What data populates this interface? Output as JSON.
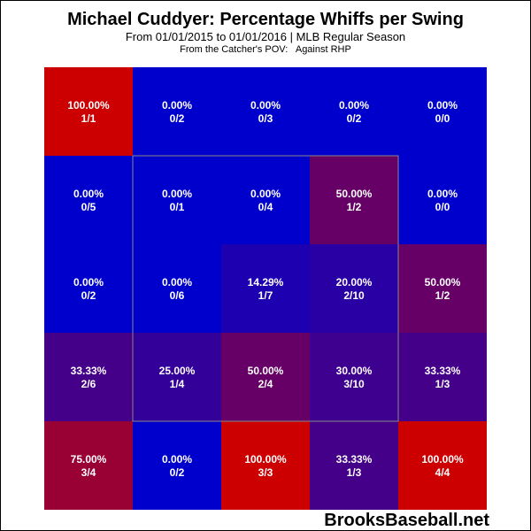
{
  "chart": {
    "title": "Michael Cuddyer: Percentage Whiffs per Swing",
    "subtitle": "From 01/01/2015 to 01/01/2016 | MLB Regular Season",
    "pov_text": "From the Catcher's POV:   Against RHP",
    "watermark": "BrooksBaseball.net"
  },
  "chart_data": {
    "type": "heatmap",
    "title": "Michael Cuddyer: Percentage Whiffs per Swing",
    "rows": 5,
    "cols": 5,
    "strike_zone": {
      "rows": [
        1,
        3
      ],
      "cols": [
        1,
        3
      ]
    },
    "colors": {
      "low": "#0000cc",
      "high": "#cc0000",
      "zone_line": "#888888",
      "text": "#ffffff"
    },
    "cells": [
      [
        {
          "pct": "100.00%",
          "frac": "1/1"
        },
        {
          "pct": "0.00%",
          "frac": "0/2"
        },
        {
          "pct": "0.00%",
          "frac": "0/3"
        },
        {
          "pct": "0.00%",
          "frac": "0/2"
        },
        {
          "pct": "0.00%",
          "frac": "0/0"
        }
      ],
      [
        {
          "pct": "0.00%",
          "frac": "0/5"
        },
        {
          "pct": "0.00%",
          "frac": "0/1"
        },
        {
          "pct": "0.00%",
          "frac": "0/4"
        },
        {
          "pct": "50.00%",
          "frac": "1/2"
        },
        {
          "pct": "0.00%",
          "frac": "0/0"
        }
      ],
      [
        {
          "pct": "0.00%",
          "frac": "0/2"
        },
        {
          "pct": "0.00%",
          "frac": "0/6"
        },
        {
          "pct": "14.29%",
          "frac": "1/7"
        },
        {
          "pct": "20.00%",
          "frac": "2/10"
        },
        {
          "pct": "50.00%",
          "frac": "1/2"
        }
      ],
      [
        {
          "pct": "33.33%",
          "frac": "2/6"
        },
        {
          "pct": "25.00%",
          "frac": "1/4"
        },
        {
          "pct": "50.00%",
          "frac": "2/4"
        },
        {
          "pct": "30.00%",
          "frac": "3/10"
        },
        {
          "pct": "33.33%",
          "frac": "1/3"
        }
      ],
      [
        {
          "pct": "75.00%",
          "frac": "3/4"
        },
        {
          "pct": "0.00%",
          "frac": "0/2"
        },
        {
          "pct": "100.00%",
          "frac": "3/3"
        },
        {
          "pct": "33.33%",
          "frac": "1/3"
        },
        {
          "pct": "100.00%",
          "frac": "4/4"
        }
      ]
    ]
  }
}
